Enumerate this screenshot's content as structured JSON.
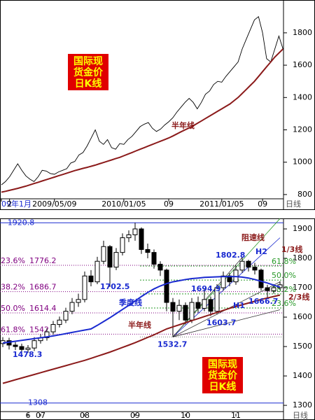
{
  "chart_data": [
    {
      "type": "line",
      "title_lines": [
        "国际现",
        "货金价",
        "日K线"
      ],
      "x_unit": "日线",
      "categories": [
        "09年1月",
        null,
        "2",
        null,
        null,
        null,
        null,
        null,
        null,
        null,
        null,
        null,
        null,
        "2009/05/09",
        null,
        null,
        null,
        null,
        null,
        null,
        null,
        null,
        null,
        null,
        null,
        null,
        null,
        null,
        null,
        null,
        "2010/01/05",
        null,
        null,
        null,
        null,
        null,
        null,
        null,
        null,
        null,
        null,
        "09",
        null,
        null,
        null,
        null,
        null,
        null,
        null,
        null,
        null,
        null,
        null,
        null,
        "2011/01/05",
        null,
        null,
        null,
        null,
        null,
        null,
        null,
        null,
        null,
        "09",
        null,
        null,
        null,
        null,
        null
      ],
      "series": [
        {
          "color": "#000000",
          "values": [
            860,
            880,
            910,
            950,
            990,
            950,
            915,
            895,
            880,
            910,
            950,
            945,
            930,
            925,
            940,
            950,
            960,
            995,
            1005,
            1045,
            1060,
            1100,
            1150,
            1200,
            1130,
            1110,
            1140,
            1090,
            1080,
            1115,
            1110,
            1140,
            1160,
            1190,
            1220,
            1235,
            1245,
            1210,
            1190,
            1205,
            1230,
            1250,
            1275,
            1310,
            1340,
            1370,
            1395,
            1370,
            1330,
            1370,
            1420,
            1440,
            1480,
            1500,
            1495,
            1530,
            1560,
            1590,
            1620,
            1700,
            1760,
            1820,
            1880,
            1900,
            1800,
            1640,
            1620,
            1700,
            1780,
            1700
          ]
        },
        {
          "name": "半年线",
          "color": "#8b1a1a",
          "values": [
            815,
            820,
            826,
            832,
            838,
            845,
            852,
            860,
            868,
            876,
            884,
            892,
            900,
            908,
            916,
            924,
            932,
            940,
            948,
            955,
            962,
            968,
            975,
            982,
            990,
            998,
            1006,
            1014,
            1022,
            1030,
            1040,
            1050,
            1060,
            1070,
            1080,
            1090,
            1100,
            1110,
            1120,
            1130,
            1140,
            1150,
            1162,
            1175,
            1188,
            1200,
            1212,
            1225,
            1240,
            1255,
            1270,
            1285,
            1300,
            1315,
            1330,
            1345,
            1360,
            1380,
            1400,
            1425,
            1450,
            1475,
            1500,
            1530,
            1560,
            1590,
            1620,
            1650,
            1675,
            1700
          ]
        }
      ],
      "ylim": [
        778,
        1990
      ],
      "yticks": [
        800,
        1000,
        1200,
        1400,
        1600,
        1800
      ]
    },
    {
      "type": "candlestick",
      "title_lines": [
        "国际现",
        "货金价",
        "日K线"
      ],
      "x_unit": "日线",
      "categories": [
        null,
        null,
        null,
        null,
        "6",
        null,
        "07",
        null,
        null,
        null,
        null,
        null,
        null,
        "08",
        null,
        null,
        null,
        null,
        null,
        null,
        null,
        "09",
        null,
        null,
        null,
        null,
        null,
        null,
        null,
        "10",
        null,
        null,
        null,
        null,
        null,
        null,
        null,
        "11",
        null,
        null,
        null,
        null,
        null,
        null,
        null
      ],
      "open": [
        1510,
        1520,
        1505,
        1500,
        1490,
        1495,
        1520,
        1530,
        1550,
        1575,
        1590,
        1620,
        1650,
        1660,
        1740,
        1720,
        1790,
        1840,
        1770,
        1820,
        1870,
        1880,
        1900,
        1830,
        1820,
        1780,
        1760,
        1650,
        1620,
        1640,
        1590,
        1650,
        1630,
        1660,
        1620,
        1700,
        1740,
        1720,
        1760,
        1790,
        1770,
        1760,
        1700,
        1690,
        1700
      ],
      "high": [
        1532,
        1530,
        1515,
        1510,
        1505,
        1532,
        1542,
        1562,
        1587,
        1602,
        1632,
        1665,
        1680,
        1755,
        1760,
        1805,
        1860,
        1845,
        1835,
        1885,
        1895,
        1920.8,
        1905,
        1850,
        1830,
        1790,
        1765,
        1665,
        1660,
        1650,
        1665,
        1670,
        1694.9,
        1670,
        1712,
        1755,
        1750,
        1775,
        1802.8,
        1795,
        1785,
        1765,
        1710,
        1712,
        1722
      ],
      "low": [
        1498,
        1490,
        1488,
        1480,
        1478.3,
        1485,
        1510,
        1520,
        1540,
        1565,
        1580,
        1610,
        1635,
        1650,
        1705,
        1712,
        1780,
        1702.5,
        1760,
        1810,
        1855,
        1860,
        1815,
        1800,
        1765,
        1740,
        1620,
        1532.7,
        1590,
        1575,
        1580,
        1615,
        1620,
        1603.7,
        1610,
        1690,
        1705,
        1710,
        1750,
        1755,
        1745,
        1690,
        1666.7,
        1680,
        1692
      ],
      "close": [
        1520,
        1505,
        1500,
        1490,
        1495,
        1520,
        1530,
        1550,
        1575,
        1590,
        1620,
        1650,
        1660,
        1740,
        1720,
        1790,
        1840,
        1770,
        1820,
        1870,
        1880,
        1900,
        1830,
        1820,
        1780,
        1760,
        1650,
        1620,
        1640,
        1590,
        1650,
        1630,
        1660,
        1620,
        1700,
        1740,
        1720,
        1760,
        1790,
        1770,
        1760,
        1700,
        1690,
        1700,
        1710
      ],
      "series": [
        {
          "name": "季度线",
          "color": "#1a2ad0",
          "values": [
            1512,
            1515,
            1518,
            1521,
            1524,
            1527,
            1530,
            1533,
            1536,
            1540,
            1544,
            1548,
            1552,
            1556,
            1560,
            1572,
            1585,
            1598,
            1612,
            1626,
            1640,
            1655,
            1670,
            1684,
            1696,
            1706,
            1714,
            1720,
            1724,
            1728,
            1731,
            1733,
            1735,
            1736,
            1737,
            1738,
            1738,
            1738,
            1736,
            1733,
            1728,
            1722,
            1716,
            1709,
            1702
          ]
        },
        {
          "name": "半年线",
          "color": "#8b1a1a",
          "values": [
            1375,
            1381,
            1387,
            1393,
            1399,
            1405,
            1411,
            1417,
            1423,
            1429,
            1435,
            1441,
            1447,
            1453,
            1460,
            1467,
            1474,
            1481,
            1489,
            1497,
            1505,
            1513,
            1522,
            1531,
            1540,
            1550,
            1560,
            1567,
            1574,
            1581,
            1588,
            1595,
            1602,
            1609,
            1616,
            1623,
            1630,
            1636,
            1642,
            1648,
            1654,
            1660,
            1665,
            1670,
            1675
          ]
        }
      ],
      "levels": [
        {
          "ratio": "23.6%",
          "value": 1776.2
        },
        {
          "ratio": "38.2%",
          "value": 1686.7
        },
        {
          "ratio": "50.0%",
          "value": 1614.4
        },
        {
          "ratio": "61.8%",
          "value": 1542
        },
        {
          "value": 1308
        }
      ],
      "green_levels": [
        {
          "ratio": "61.8%",
          "value": 1774
        },
        {
          "ratio": "50.0%",
          "value": 1726
        },
        {
          "ratio": "38.2%",
          "value": 1679
        },
        {
          "ratio": "23.6%",
          "value": 1631
        }
      ],
      "annotations": [
        "阻速线",
        "H2",
        "1/3线",
        "H1",
        "2/3线"
      ],
      "ylim": [
        1274,
        1931
      ],
      "yticks": [
        1300,
        1400,
        1500,
        1600,
        1700,
        1800,
        1900
      ]
    }
  ]
}
